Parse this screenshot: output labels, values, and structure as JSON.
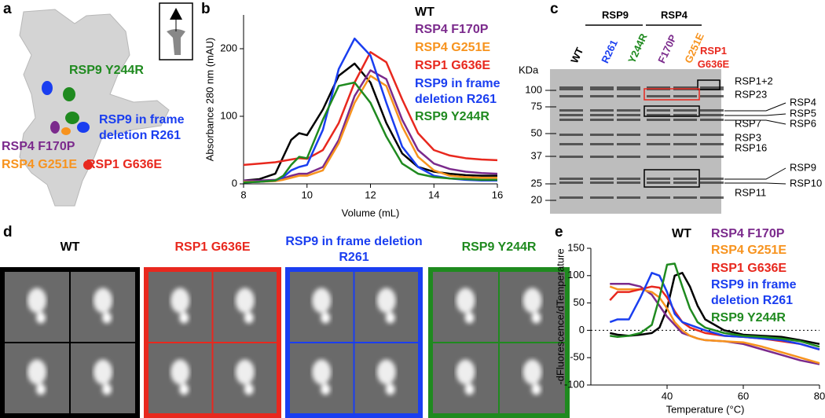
{
  "panel_labels": [
    "a",
    "b",
    "c",
    "d",
    "e"
  ],
  "structure": {
    "labels": [
      {
        "text": "RSP9 Y244R",
        "color": "#1f8a1f"
      },
      {
        "text": "RSP9 in frame deletion R261",
        "color": "#1a3ef0"
      },
      {
        "text": "RSP4 F170P",
        "color": "#7b2a8c"
      },
      {
        "text": "RSP4 G251E",
        "color": "#f7931e"
      },
      {
        "text": "RSP1 G636E",
        "color": "#e8281e"
      }
    ]
  },
  "gel": {
    "group_labels": [
      "RSP9",
      "RSP4"
    ],
    "lanes": [
      {
        "text": "WT",
        "color": "#000000"
      },
      {
        "text": "R261",
        "color": "#1a3ef0"
      },
      {
        "text": "Y244R",
        "color": "#1f8a1f"
      },
      {
        "text": "F170P",
        "color": "#7b2a8c"
      },
      {
        "text": "G251E",
        "color": "#f7931e"
      },
      {
        "text": "RSP1 G636E",
        "color": "#e8281e"
      }
    ],
    "kda_label": "KDa",
    "markers": [
      100,
      75,
      50,
      37,
      25,
      20
    ],
    "bands": [
      "RSP1+2",
      "RSP23",
      "RSP4",
      "RSP5",
      "RSP6",
      "RSP7",
      "RSP3",
      "RSP16",
      "RSP9",
      "RSP10",
      "RSP11"
    ]
  },
  "class_averages": [
    {
      "title": "WT",
      "color": "#000000"
    },
    {
      "title": "RSP1 G636E",
      "color": "#e8281e"
    },
    {
      "title": "RSP9 in frame deletion R261",
      "color": "#1a3ef0"
    },
    {
      "title": "RSP9 Y244R",
      "color": "#1f8a1f"
    }
  ],
  "chart_data": [
    {
      "type": "line",
      "xlabel": "Volume (mL)",
      "ylabel": "Absorbance 280 nm (mAU)",
      "x": [
        8,
        8.5,
        9,
        9.25,
        9.5,
        9.75,
        10,
        10.5,
        11,
        11.5,
        12,
        12.5,
        13,
        13.5,
        14,
        14.5,
        15,
        15.5,
        16
      ],
      "xlim": [
        8,
        16
      ],
      "xticks": [
        8,
        10,
        12,
        14,
        16
      ],
      "ylim": [
        0,
        250
      ],
      "yticks": [
        0,
        100,
        200
      ],
      "series": [
        {
          "name": "WT",
          "color": "#000000",
          "values": [
            5,
            7,
            15,
            40,
            65,
            75,
            72,
            110,
            160,
            178,
            150,
            90,
            45,
            25,
            18,
            15,
            13,
            12,
            12
          ]
        },
        {
          "name": "RSP4 F170P",
          "color": "#7b2a8c",
          "values": [
            5,
            5,
            6,
            8,
            12,
            15,
            15,
            25,
            65,
            130,
            168,
            155,
            95,
            50,
            30,
            22,
            18,
            16,
            15
          ]
        },
        {
          "name": "RSP4 G251E",
          "color": "#f7931e",
          "values": [
            3,
            3,
            4,
            6,
            9,
            12,
            12,
            20,
            60,
            120,
            160,
            145,
            85,
            40,
            20,
            12,
            10,
            9,
            9
          ]
        },
        {
          "name": "RSP1 G636E",
          "color": "#e8281e",
          "values": [
            28,
            30,
            32,
            34,
            36,
            38,
            37,
            50,
            90,
            150,
            195,
            180,
            125,
            75,
            50,
            42,
            38,
            36,
            35
          ]
        },
        {
          "name": "RSP9 in frame deletion R261",
          "color": "#1a3ef0",
          "values": [
            2,
            3,
            5,
            10,
            20,
            25,
            28,
            80,
            170,
            215,
            190,
            120,
            55,
            25,
            12,
            8,
            6,
            5,
            5
          ]
        },
        {
          "name": "RSP9 Y244R",
          "color": "#1f8a1f",
          "values": [
            2,
            3,
            5,
            12,
            28,
            40,
            38,
            95,
            145,
            150,
            120,
            70,
            30,
            15,
            10,
            8,
            7,
            6,
            6
          ]
        }
      ]
    },
    {
      "type": "line",
      "xlabel": "Temperature (°C)",
      "ylabel": "-dFluorescence/dTemperature",
      "x": [
        25,
        27,
        30,
        33,
        36,
        38,
        40,
        42,
        44,
        46,
        48,
        50,
        55,
        60,
        65,
        70,
        75,
        80
      ],
      "xlim": [
        20,
        80
      ],
      "xticks": [
        40,
        60,
        80
      ],
      "ylim": [
        -100,
        150
      ],
      "yticks": [
        -100,
        -50,
        0,
        50,
        100,
        150
      ],
      "hline": 0,
      "series": [
        {
          "name": "WT",
          "color": "#000000",
          "values": [
            -5,
            -8,
            -10,
            -8,
            -5,
            5,
            40,
            100,
            105,
            80,
            45,
            20,
            0,
            -8,
            -10,
            -12,
            -18,
            -25
          ]
        },
        {
          "name": "RSP4 F170P",
          "color": "#7b2a8c",
          "values": [
            85,
            85,
            85,
            80,
            65,
            45,
            25,
            10,
            -5,
            -10,
            -15,
            -18,
            -20,
            -25,
            -35,
            -45,
            -55,
            -62
          ]
        },
        {
          "name": "RSP4 G251E",
          "color": "#f7931e",
          "values": [
            80,
            75,
            75,
            75,
            70,
            60,
            40,
            15,
            0,
            -10,
            -15,
            -18,
            -20,
            -22,
            -30,
            -40,
            -50,
            -60
          ]
        },
        {
          "name": "RSP1 G636E",
          "color": "#e8281e",
          "values": [
            55,
            70,
            70,
            75,
            80,
            78,
            60,
            35,
            15,
            5,
            0,
            -5,
            -10,
            -12,
            -15,
            -20,
            -25,
            -35
          ]
        },
        {
          "name": "RSP9 in frame deletion R261",
          "color": "#1a3ef0",
          "values": [
            15,
            20,
            20,
            60,
            105,
            100,
            70,
            30,
            15,
            10,
            5,
            0,
            -10,
            -12,
            -15,
            -18,
            -25,
            -35
          ]
        },
        {
          "name": "RSP9 Y244R",
          "color": "#1f8a1f",
          "values": [
            -10,
            -12,
            -10,
            -5,
            10,
            60,
            120,
            122,
            80,
            40,
            15,
            5,
            -5,
            -10,
            -12,
            -15,
            -20,
            -30
          ]
        }
      ]
    }
  ]
}
